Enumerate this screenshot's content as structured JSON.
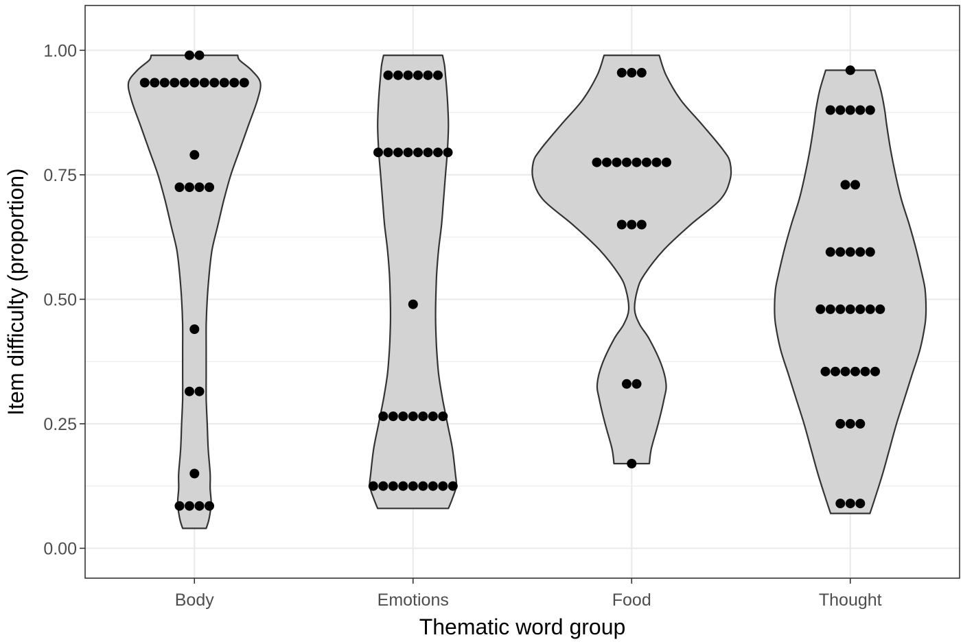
{
  "chart_data": {
    "type": "violin",
    "xlabel": "Thematic word group",
    "ylabel": "Item difficulty (proportion)",
    "ylim": [
      -0.06,
      1.09
    ],
    "yticks": [
      "0.00",
      "0.25",
      "0.50",
      "0.75",
      "1.00"
    ],
    "ytick_values": [
      0,
      0.25,
      0.5,
      0.75,
      1.0
    ],
    "grid": true,
    "theme": "bw",
    "violin_fill": "#d3d3d3",
    "violin_stroke": "#333333",
    "point_color": "#000000",
    "categories": [
      "Body",
      "Emotions",
      "Food",
      "Thought"
    ],
    "groups": [
      {
        "name": "Body",
        "range": [
          0.04,
          0.99
        ],
        "density_profile": [
          [
            0.04,
            0.12
          ],
          [
            0.06,
            0.15
          ],
          [
            0.09,
            0.17
          ],
          [
            0.12,
            0.16
          ],
          [
            0.15,
            0.16
          ],
          [
            0.2,
            0.14
          ],
          [
            0.25,
            0.13
          ],
          [
            0.3,
            0.12
          ],
          [
            0.35,
            0.12
          ],
          [
            0.4,
            0.12
          ],
          [
            0.45,
            0.12
          ],
          [
            0.5,
            0.13
          ],
          [
            0.55,
            0.15
          ],
          [
            0.6,
            0.18
          ],
          [
            0.65,
            0.24
          ],
          [
            0.7,
            0.3
          ],
          [
            0.75,
            0.37
          ],
          [
            0.8,
            0.46
          ],
          [
            0.85,
            0.55
          ],
          [
            0.9,
            0.64
          ],
          [
            0.935,
            0.67
          ],
          [
            0.96,
            0.58
          ],
          [
            0.98,
            0.46
          ],
          [
            0.99,
            0.44
          ]
        ],
        "points": [
          0.99,
          0.99,
          0.935,
          0.935,
          0.935,
          0.935,
          0.935,
          0.935,
          0.935,
          0.935,
          0.935,
          0.935,
          0.935,
          0.79,
          0.725,
          0.725,
          0.725,
          0.725,
          0.44,
          0.315,
          0.315,
          0.15,
          0.085,
          0.085,
          0.085,
          0.085
        ]
      },
      {
        "name": "Emotions",
        "range": [
          0.08,
          0.99
        ],
        "density_profile": [
          [
            0.08,
            0.36
          ],
          [
            0.1,
            0.4
          ],
          [
            0.125,
            0.44
          ],
          [
            0.15,
            0.43
          ],
          [
            0.2,
            0.4
          ],
          [
            0.25,
            0.35
          ],
          [
            0.3,
            0.3
          ],
          [
            0.35,
            0.26
          ],
          [
            0.4,
            0.24
          ],
          [
            0.45,
            0.23
          ],
          [
            0.49,
            0.23
          ],
          [
            0.55,
            0.24
          ],
          [
            0.6,
            0.26
          ],
          [
            0.65,
            0.29
          ],
          [
            0.7,
            0.31
          ],
          [
            0.75,
            0.33
          ],
          [
            0.8,
            0.35
          ],
          [
            0.85,
            0.36
          ],
          [
            0.9,
            0.35
          ],
          [
            0.95,
            0.33
          ],
          [
            0.97,
            0.32
          ],
          [
            0.99,
            0.3
          ]
        ],
        "points": [
          0.95,
          0.95,
          0.95,
          0.95,
          0.95,
          0.95,
          0.795,
          0.795,
          0.795,
          0.795,
          0.795,
          0.795,
          0.795,
          0.795,
          0.49,
          0.265,
          0.265,
          0.265,
          0.265,
          0.265,
          0.265,
          0.265,
          0.125,
          0.125,
          0.125,
          0.125,
          0.125,
          0.125,
          0.125,
          0.125,
          0.125
        ]
      },
      {
        "name": "Food",
        "range": [
          0.17,
          0.99
        ],
        "density_profile": [
          [
            0.17,
            0.18
          ],
          [
            0.2,
            0.2
          ],
          [
            0.25,
            0.27
          ],
          [
            0.3,
            0.33
          ],
          [
            0.33,
            0.35
          ],
          [
            0.37,
            0.3
          ],
          [
            0.42,
            0.18
          ],
          [
            0.45,
            0.08
          ],
          [
            0.48,
            0.03
          ],
          [
            0.52,
            0.06
          ],
          [
            0.55,
            0.13
          ],
          [
            0.6,
            0.33
          ],
          [
            0.65,
            0.6
          ],
          [
            0.7,
            0.9
          ],
          [
            0.74,
            1.0
          ],
          [
            0.775,
            1.0
          ],
          [
            0.8,
            0.93
          ],
          [
            0.85,
            0.72
          ],
          [
            0.9,
            0.5
          ],
          [
            0.95,
            0.35
          ],
          [
            0.99,
            0.28
          ]
        ],
        "points": [
          0.955,
          0.955,
          0.955,
          0.775,
          0.775,
          0.775,
          0.775,
          0.775,
          0.775,
          0.775,
          0.775,
          0.65,
          0.65,
          0.65,
          0.33,
          0.33,
          0.17
        ]
      },
      {
        "name": "Thought",
        "range": [
          0.07,
          0.96
        ],
        "density_profile": [
          [
            0.07,
            0.2
          ],
          [
            0.1,
            0.25
          ],
          [
            0.15,
            0.33
          ],
          [
            0.2,
            0.4
          ],
          [
            0.25,
            0.47
          ],
          [
            0.3,
            0.55
          ],
          [
            0.35,
            0.63
          ],
          [
            0.4,
            0.71
          ],
          [
            0.45,
            0.76
          ],
          [
            0.48,
            0.77
          ],
          [
            0.52,
            0.76
          ],
          [
            0.55,
            0.73
          ],
          [
            0.6,
            0.67
          ],
          [
            0.65,
            0.6
          ],
          [
            0.7,
            0.52
          ],
          [
            0.75,
            0.46
          ],
          [
            0.8,
            0.41
          ],
          [
            0.85,
            0.37
          ],
          [
            0.88,
            0.35
          ],
          [
            0.92,
            0.31
          ],
          [
            0.96,
            0.25
          ]
        ],
        "points": [
          0.96,
          0.88,
          0.88,
          0.88,
          0.88,
          0.88,
          0.73,
          0.73,
          0.595,
          0.595,
          0.595,
          0.595,
          0.595,
          0.48,
          0.48,
          0.48,
          0.48,
          0.48,
          0.48,
          0.48,
          0.355,
          0.355,
          0.355,
          0.355,
          0.355,
          0.355,
          0.25,
          0.25,
          0.25,
          0.09,
          0.09,
          0.09
        ]
      }
    ]
  }
}
